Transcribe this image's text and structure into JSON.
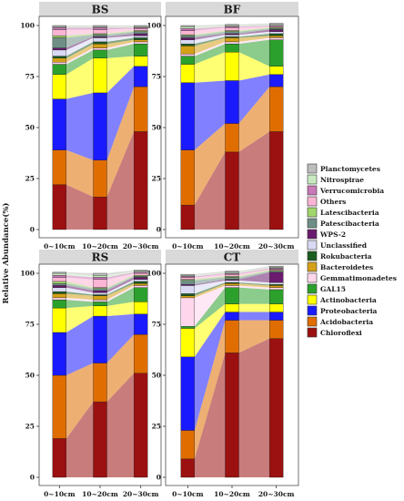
{
  "figure": {
    "ylabel": "Relative Abundance(%)"
  },
  "legend": [
    {
      "name": "Planctomycetes",
      "color": "#bdbdbd"
    },
    {
      "name": "Nitrospirae",
      "color": "#c7e9c0"
    },
    {
      "name": "Verrucomicrobia",
      "color": "#c978b8"
    },
    {
      "name": "Others",
      "color": "#fbb4d4"
    },
    {
      "name": "Latescibacteria",
      "color": "#a1d76a"
    },
    {
      "name": "Patescibacteria",
      "color": "#6f8f86"
    },
    {
      "name": "WPS-2",
      "color": "#6a1b6e"
    },
    {
      "name": "Unclassified",
      "color": "#d9d9f3"
    },
    {
      "name": "Rokubacteria",
      "color": "#1b5e20"
    },
    {
      "name": "Bacteroidetes",
      "color": "#d4a017"
    },
    {
      "name": "Gemmatimonadetes",
      "color": "#ffd6ec"
    },
    {
      "name": "GAL15",
      "color": "#2ca02c"
    },
    {
      "name": "Actinobacteria",
      "color": "#ffff00"
    },
    {
      "name": "Proteobacteria",
      "color": "#1a1aff"
    },
    {
      "name": "Acidobacteria",
      "color": "#e06d00"
    },
    {
      "name": "Chloroflexi",
      "color": "#9b1010"
    }
  ],
  "chart_data": [
    {
      "type": "bar",
      "panel": "BS",
      "title": "BS",
      "categories": [
        "0~10cm",
        "10~20cm",
        "20~30cm"
      ],
      "ylim": [
        0,
        100
      ],
      "yticks": [
        0,
        25,
        50,
        75,
        100
      ],
      "stacked": true,
      "series": [
        {
          "name": "Chloroflexi",
          "values": [
            22,
            16,
            48
          ]
        },
        {
          "name": "Acidobacteria",
          "values": [
            17,
            18,
            22
          ]
        },
        {
          "name": "Proteobacteria",
          "values": [
            25,
            33,
            10
          ]
        },
        {
          "name": "Actinobacteria",
          "values": [
            12,
            17,
            5
          ]
        },
        {
          "name": "GAL15",
          "values": [
            5,
            4,
            6
          ]
        },
        {
          "name": "Gemmatimonadetes",
          "values": [
            1,
            1,
            1
          ]
        },
        {
          "name": "Bacteroidetes",
          "values": [
            2,
            2,
            1
          ]
        },
        {
          "name": "Rokubacteria",
          "values": [
            1,
            1,
            1
          ]
        },
        {
          "name": "Unclassified",
          "values": [
            3,
            2,
            1
          ]
        },
        {
          "name": "WPS-2",
          "values": [
            1,
            0.5,
            1
          ]
        },
        {
          "name": "Patescibacteria",
          "values": [
            5,
            1,
            1
          ]
        },
        {
          "name": "Latescibacteria",
          "values": [
            1,
            0.5,
            0.5
          ]
        },
        {
          "name": "Others",
          "values": [
            3,
            2,
            1
          ]
        },
        {
          "name": "Verrucomicrobia",
          "values": [
            1,
            1,
            0.5
          ]
        },
        {
          "name": "Nitrospirae",
          "values": [
            0.5,
            0.5,
            0.5
          ]
        },
        {
          "name": "Planctomycetes",
          "values": [
            0.5,
            0.5,
            0.5
          ]
        }
      ]
    },
    {
      "type": "bar",
      "panel": "BF",
      "title": "BF",
      "categories": [
        "0~10cm",
        "10~20cm",
        "20~30cm"
      ],
      "ylim": [
        0,
        100
      ],
      "yticks": [
        0,
        25,
        50,
        75,
        100
      ],
      "stacked": true,
      "series": [
        {
          "name": "Chloroflexi",
          "values": [
            12,
            38,
            48
          ]
        },
        {
          "name": "Acidobacteria",
          "values": [
            27,
            14,
            22
          ]
        },
        {
          "name": "Proteobacteria",
          "values": [
            33,
            21,
            6
          ]
        },
        {
          "name": "Actinobacteria",
          "values": [
            9,
            14,
            4
          ]
        },
        {
          "name": "GAL15",
          "values": [
            4,
            4,
            13
          ]
        },
        {
          "name": "Gemmatimonadetes",
          "values": [
            1,
            1,
            1
          ]
        },
        {
          "name": "Bacteroidetes",
          "values": [
            4,
            2,
            1
          ]
        },
        {
          "name": "Rokubacteria",
          "values": [
            1,
            0.5,
            1
          ]
        },
        {
          "name": "Unclassified",
          "values": [
            2,
            1,
            1
          ]
        },
        {
          "name": "WPS-2",
          "values": [
            1,
            0.5,
            1
          ]
        },
        {
          "name": "Patescibacteria",
          "values": [
            1,
            1,
            0.5
          ]
        },
        {
          "name": "Latescibacteria",
          "values": [
            0.5,
            0.5,
            0.5
          ]
        },
        {
          "name": "Others",
          "values": [
            2,
            1.5,
            0.5
          ]
        },
        {
          "name": "Verrucomicrobia",
          "values": [
            1,
            0.5,
            0.5
          ]
        },
        {
          "name": "Nitrospirae",
          "values": [
            1,
            0.5,
            0.5
          ]
        },
        {
          "name": "Planctomycetes",
          "values": [
            0.5,
            0.5,
            0.5
          ]
        }
      ]
    },
    {
      "type": "bar",
      "panel": "RS",
      "title": "RS",
      "categories": [
        "0~10cm",
        "10~20cm",
        "20~30cm"
      ],
      "ylim": [
        0,
        100
      ],
      "yticks": [
        0,
        25,
        50,
        75,
        100
      ],
      "stacked": true,
      "series": [
        {
          "name": "Chloroflexi",
          "values": [
            19,
            37,
            51
          ]
        },
        {
          "name": "Acidobacteria",
          "values": [
            31,
            19,
            19
          ]
        },
        {
          "name": "Proteobacteria",
          "values": [
            21,
            23,
            10
          ]
        },
        {
          "name": "Actinobacteria",
          "values": [
            12,
            5,
            6
          ]
        },
        {
          "name": "GAL15",
          "values": [
            4,
            2,
            7
          ]
        },
        {
          "name": "Gemmatimonadetes",
          "values": [
            1,
            1,
            1
          ]
        },
        {
          "name": "Bacteroidetes",
          "values": [
            2,
            2,
            1
          ]
        },
        {
          "name": "Rokubacteria",
          "values": [
            1,
            0.5,
            1
          ]
        },
        {
          "name": "Unclassified",
          "values": [
            2,
            1,
            1
          ]
        },
        {
          "name": "WPS-2",
          "values": [
            1,
            1,
            1
          ]
        },
        {
          "name": "Patescibacteria",
          "values": [
            1,
            1,
            0.5
          ]
        },
        {
          "name": "Latescibacteria",
          "values": [
            1,
            0.5,
            0.5
          ]
        },
        {
          "name": "Others",
          "values": [
            2,
            4,
            1
          ]
        },
        {
          "name": "Verrucomicrobia",
          "values": [
            1,
            1,
            0.5
          ]
        },
        {
          "name": "Nitrospirae",
          "values": [
            1,
            1,
            0.5
          ]
        },
        {
          "name": "Planctomycetes",
          "values": [
            0.5,
            1,
            0.5
          ]
        }
      ]
    },
    {
      "type": "bar",
      "panel": "CT",
      "title": "CT",
      "categories": [
        "0~10cm",
        "10~20cm",
        "20~30cm"
      ],
      "ylim": [
        0,
        100
      ],
      "yticks": [
        0,
        25,
        50,
        75,
        100
      ],
      "stacked": true,
      "series": [
        {
          "name": "Chloroflexi",
          "values": [
            9,
            61,
            68
          ]
        },
        {
          "name": "Acidobacteria",
          "values": [
            14,
            16,
            9
          ]
        },
        {
          "name": "Proteobacteria",
          "values": [
            36,
            4,
            4
          ]
        },
        {
          "name": "Actinobacteria",
          "values": [
            14,
            4,
            4
          ]
        },
        {
          "name": "GAL15",
          "values": [
            1,
            8,
            7
          ]
        },
        {
          "name": "Gemmatimonadetes",
          "values": [
            14,
            1,
            1
          ]
        },
        {
          "name": "Bacteroidetes",
          "values": [
            1,
            1,
            1
          ]
        },
        {
          "name": "Rokubacteria",
          "values": [
            1,
            0.5,
            0.5
          ]
        },
        {
          "name": "Unclassified",
          "values": [
            4,
            1,
            1
          ]
        },
        {
          "name": "WPS-2",
          "values": [
            0.5,
            0.5,
            5
          ]
        },
        {
          "name": "Patescibacteria",
          "values": [
            2,
            1,
            0.5
          ]
        },
        {
          "name": "Latescibacteria",
          "values": [
            0.5,
            0.5,
            0.5
          ]
        },
        {
          "name": "Others",
          "values": [
            1,
            1,
            0.5
          ]
        },
        {
          "name": "Verrucomicrobia",
          "values": [
            0.5,
            0.5,
            0.5
          ]
        },
        {
          "name": "Nitrospirae",
          "values": [
            0.5,
            0.5,
            0.5
          ]
        },
        {
          "name": "Planctomycetes",
          "values": [
            0.5,
            0.5,
            0.5
          ]
        }
      ]
    }
  ]
}
